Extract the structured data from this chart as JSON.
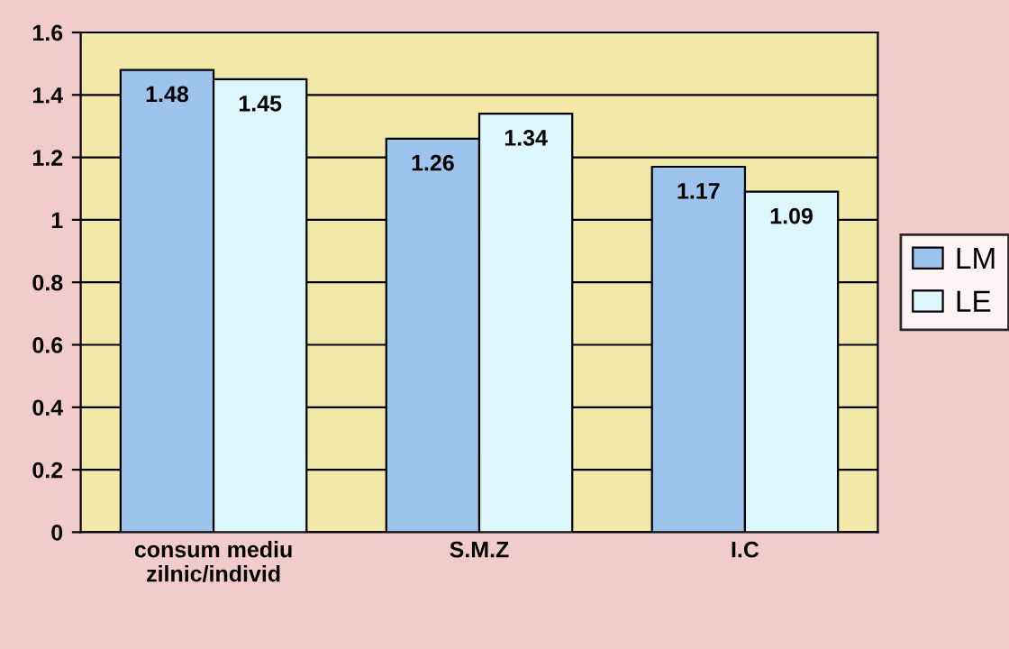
{
  "chart_data": {
    "type": "bar",
    "categories": [
      "consum mediu\nzilnic/individ",
      "S.M.Z",
      "I.C"
    ],
    "series": [
      {
        "name": "LM",
        "color": "#9cc4ec",
        "values": [
          1.48,
          1.26,
          1.17
        ]
      },
      {
        "name": "LE",
        "color": "#dcf8fc",
        "values": [
          1.45,
          1.34,
          1.09
        ]
      }
    ],
    "ylim": [
      0,
      1.6
    ],
    "yticks": [
      0,
      0.2,
      0.4,
      0.6,
      0.8,
      1,
      1.2,
      1.4,
      1.6
    ],
    "grid": "y",
    "legend": "right",
    "data_labels": true
  }
}
